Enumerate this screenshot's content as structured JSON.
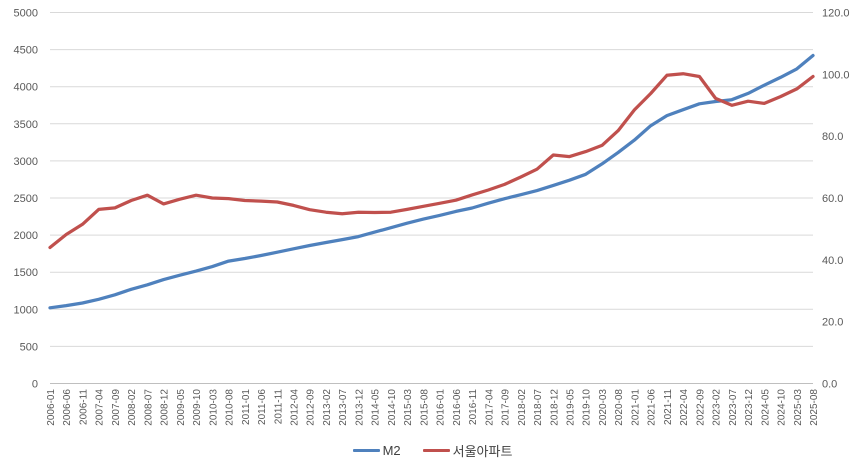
{
  "chart_data": {
    "type": "line",
    "title": "",
    "categories": [
      "2006-01",
      "2006-06",
      "2006-11",
      "2007-04",
      "2007-09",
      "2008-02",
      "2008-07",
      "2008-12",
      "2009-05",
      "2009-10",
      "2010-03",
      "2010-08",
      "2011-01",
      "2011-06",
      "2011-11",
      "2012-04",
      "2012-09",
      "2013-02",
      "2013-07",
      "2013-12",
      "2014-05",
      "2014-10",
      "2015-03",
      "2015-08",
      "2016-01",
      "2016-06",
      "2016-11",
      "2017-04",
      "2017-09",
      "2018-02",
      "2018-07",
      "2018-12",
      "2019-05",
      "2019-10",
      "2020-03",
      "2020-08",
      "2021-01",
      "2021-06",
      "2021-11",
      "2022-04",
      "2022-09",
      "2023-02",
      "2023-07",
      "2023-12",
      "2024-05",
      "2024-10",
      "2025-03",
      "2025-08"
    ],
    "series": [
      {
        "name": "M2",
        "axis": "left",
        "color": "#4F81BD",
        "values": [
          1020,
          1050,
          1085,
          1135,
          1195,
          1270,
          1330,
          1400,
          1460,
          1515,
          1575,
          1650,
          1685,
          1725,
          1770,
          1815,
          1860,
          1900,
          1940,
          1980,
          2040,
          2100,
          2160,
          2215,
          2265,
          2320,
          2365,
          2430,
          2490,
          2545,
          2600,
          2670,
          2740,
          2820,
          2960,
          3115,
          3280,
          3475,
          3610,
          3690,
          3770,
          3800,
          3825,
          3910,
          4020,
          4125,
          4240,
          4420
        ]
      },
      {
        "name": "서울아파트",
        "axis": "right",
        "color": "#C0504D",
        "values": [
          44.0,
          48.2,
          51.5,
          56.3,
          56.8,
          59.2,
          60.9,
          58.1,
          59.6,
          60.9,
          60.0,
          59.8,
          59.2,
          59.0,
          58.7,
          57.6,
          56.2,
          55.4,
          54.9,
          55.4,
          55.3,
          55.4,
          56.3,
          57.3,
          58.3,
          59.3,
          61.0,
          62.6,
          64.4,
          66.8,
          69.3,
          73.9,
          73.4,
          75.0,
          77.0,
          81.8,
          88.5,
          93.8,
          99.7,
          100.2,
          99.3,
          92.2,
          90.0,
          91.3,
          90.6,
          92.8,
          95.3,
          99.3
        ]
      }
    ],
    "left_axis": {
      "min": 0,
      "max": 5000,
      "step": 500,
      "tick_labels": [
        "0",
        "500",
        "1000",
        "1500",
        "2000",
        "2500",
        "3000",
        "3500",
        "4000",
        "4500",
        "5000"
      ]
    },
    "right_axis": {
      "min": 0,
      "max": 120,
      "step": 20,
      "tick_labels": [
        "0.0",
        "20.0",
        "40.0",
        "60.0",
        "80.0",
        "100.0",
        "120.0"
      ]
    },
    "grid": "horizontal",
    "legend_position": "bottom-center",
    "colors": {
      "background": "#FFFFFF",
      "gridline": "#D9D9D9",
      "axis_line": "#BFBFBF",
      "tick_label": "#595959",
      "legend_text": "#404040"
    }
  }
}
